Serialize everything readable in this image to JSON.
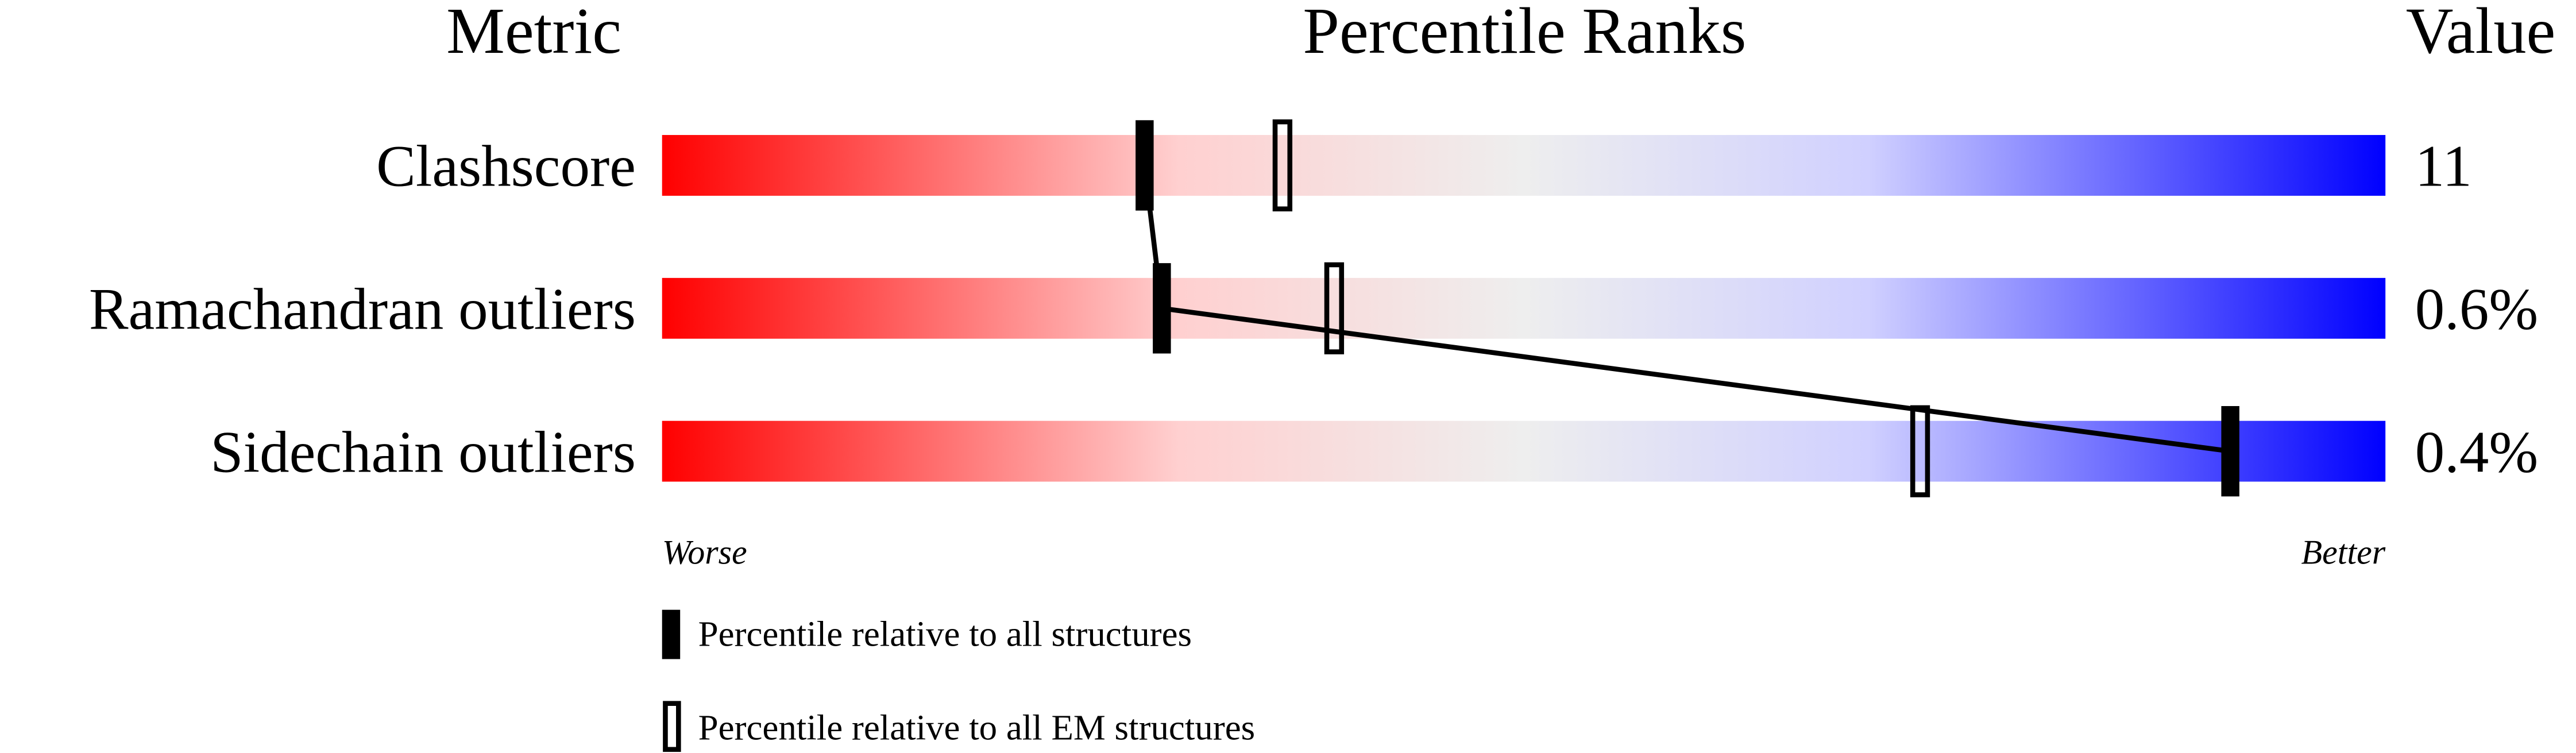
{
  "chart_data": {
    "type": "bar",
    "title": "Percentile Ranks",
    "header_metric": "Metric",
    "header_value": "Value",
    "worse_label": "Worse",
    "better_label": "Better",
    "xlim": [
      0,
      100
    ],
    "rows": [
      {
        "metric": "Clashscore",
        "value": "11",
        "percentile_all": 28,
        "percentile_em": 36
      },
      {
        "metric": "Ramachandran outliers",
        "value": "0.6%",
        "percentile_all": 29,
        "percentile_em": 39
      },
      {
        "metric": "Sidechain outliers",
        "value": "0.4%",
        "percentile_all": 91,
        "percentile_em": 73
      }
    ],
    "legend": [
      {
        "label": "Percentile relative to all structures",
        "marker": "filled"
      },
      {
        "label": "Percentile relative to all EM structures",
        "marker": "open"
      }
    ],
    "colors": {
      "worse": "#ff0000",
      "middle": "#eeeeee",
      "better": "#0000ff",
      "marker": "#000000"
    }
  }
}
